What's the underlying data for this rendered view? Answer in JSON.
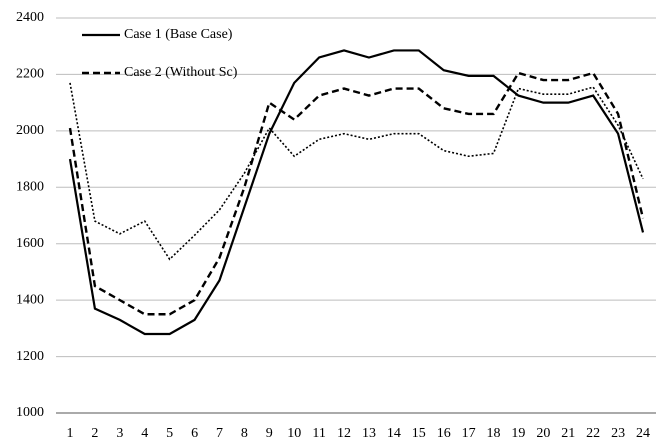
{
  "chart_data": {
    "type": "line",
    "categories": [
      "1",
      "2",
      "3",
      "4",
      "5",
      "6",
      "7",
      "8",
      "9",
      "10",
      "11",
      "12",
      "13",
      "14",
      "15",
      "16",
      "17",
      "18",
      "19",
      "20",
      "21",
      "22",
      "23",
      "24"
    ],
    "series": [
      {
        "name": "Case 1 (Base Case)",
        "color": "#000000",
        "line_style": "solid",
        "values": [
          1900,
          1370,
          1330,
          1280,
          1280,
          1330,
          1470,
          1730,
          1990,
          2170,
          2260,
          2285,
          2260,
          2285,
          2285,
          2215,
          2195,
          2195,
          2125,
          2100,
          2100,
          2125,
          1990,
          1640
        ]
      },
      {
        "name": "Case 2 (Without Sc)",
        "color": "#000000",
        "line_style": "dashed",
        "values": [
          2010,
          1450,
          1400,
          1350,
          1350,
          1400,
          1550,
          1800,
          2100,
          2040,
          2125,
          2150,
          2125,
          2150,
          2150,
          2080,
          2060,
          2060,
          2205,
          2180,
          2180,
          2205,
          2060,
          1690
        ]
      },
      {
        "color": "#000000",
        "line_style": "dotted",
        "values": [
          2170,
          1680,
          1635,
          1680,
          1545,
          1630,
          1720,
          1850,
          2010,
          1910,
          1970,
          1990,
          1970,
          1990,
          1990,
          1930,
          1910,
          1920,
          2150,
          2130,
          2130,
          2155,
          2020,
          1830
        ]
      }
    ],
    "ylim": [
      1000,
      2400
    ],
    "yticks": [
      1000,
      1200,
      1400,
      1600,
      1800,
      2000,
      2200,
      2400
    ],
    "grid": true
  }
}
